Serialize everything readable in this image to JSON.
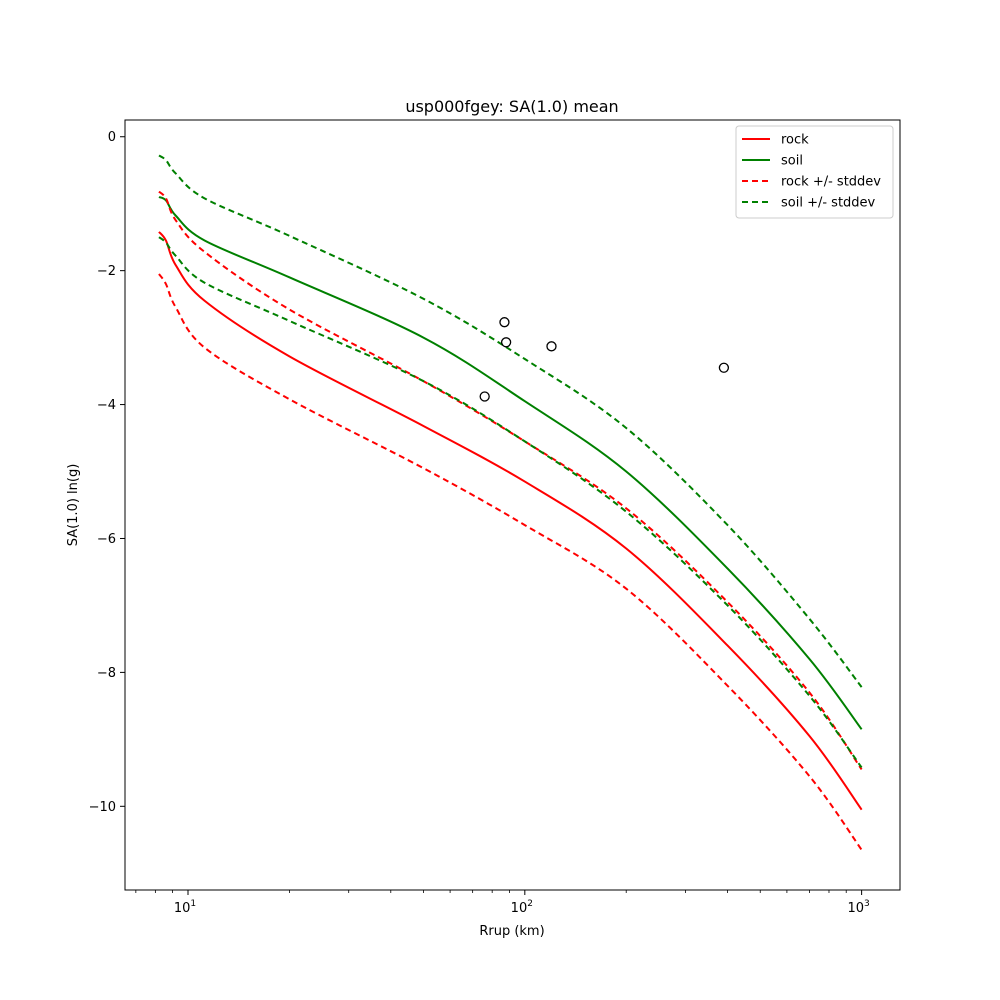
{
  "chart_data": {
    "type": "line",
    "title": "usp000fgey: SA(1.0) mean",
    "xlabel": "Rrup (km)",
    "ylabel": "SA(1.0) ln(g)",
    "xscale": "log",
    "xlim": [
      6.5,
      1300
    ],
    "ylim": [
      -11.25,
      0.25
    ],
    "x_ticks": [
      {
        "value": 10,
        "base": "10",
        "exp": "1"
      },
      {
        "value": 100,
        "base": "10",
        "exp": "2"
      },
      {
        "value": 1000,
        "base": "10",
        "exp": "3"
      }
    ],
    "y_ticks": [
      {
        "value": 0,
        "label": "0"
      },
      {
        "value": -2,
        "label": "−2"
      },
      {
        "value": -4,
        "label": "−4"
      },
      {
        "value": -6,
        "label": "−6"
      },
      {
        "value": -8,
        "label": "−8"
      },
      {
        "value": -10,
        "label": "−10"
      }
    ],
    "grid": false,
    "legend_position": "top-right",
    "series": [
      {
        "name": "rock",
        "color": "#ff0000",
        "dash": "solid",
        "x": [
          8.2,
          8.6,
          9.2,
          11.2,
          20,
          50,
          100,
          200,
          400,
          700,
          1000
        ],
        "y": [
          -1.42,
          -1.55,
          -1.92,
          -2.45,
          -3.28,
          -4.32,
          -5.15,
          -6.15,
          -7.6,
          -8.95,
          -10.05
        ]
      },
      {
        "name": "soil",
        "color": "#008000",
        "dash": "solid",
        "x": [
          8.2,
          8.6,
          9.2,
          11.2,
          20,
          50,
          100,
          200,
          400,
          700,
          1000
        ],
        "y": [
          -0.9,
          -0.95,
          -1.18,
          -1.55,
          -2.1,
          -3.0,
          -3.95,
          -5.0,
          -6.45,
          -7.8,
          -8.85
        ]
      },
      {
        "name": "rock +/- stddev",
        "color": "#ff0000",
        "dash": "dashed",
        "x": [
          8.2,
          8.6,
          9.2,
          11.2,
          20,
          50,
          100,
          200,
          400,
          700,
          1000
        ],
        "y": [
          -0.82,
          -0.92,
          -1.25,
          -1.72,
          -2.58,
          -3.65,
          -4.55,
          -5.55,
          -6.95,
          -8.3,
          -9.45
        ]
      },
      {
        "name": "",
        "color": "#ff0000",
        "dash": "dashed",
        "x": [
          8.2,
          8.6,
          9.2,
          11.2,
          20,
          50,
          100,
          200,
          400,
          700,
          1000
        ],
        "y": [
          -2.05,
          -2.2,
          -2.55,
          -3.15,
          -3.92,
          -4.95,
          -5.8,
          -6.75,
          -8.2,
          -9.55,
          -10.65
        ]
      },
      {
        "name": "soil +/- stddev",
        "color": "#008000",
        "dash": "dashed",
        "x": [
          8.2,
          8.6,
          9.2,
          11.2,
          20,
          50,
          100,
          200,
          400,
          700,
          1000
        ],
        "y": [
          -0.28,
          -0.35,
          -0.55,
          -0.92,
          -1.48,
          -2.42,
          -3.32,
          -4.35,
          -5.8,
          -7.2,
          -8.22
        ]
      },
      {
        "name": "",
        "color": "#008000",
        "dash": "dashed",
        "x": [
          8.2,
          8.6,
          9.2,
          11.2,
          20,
          50,
          100,
          200,
          400,
          700,
          1000
        ],
        "y": [
          -1.5,
          -1.58,
          -1.78,
          -2.18,
          -2.75,
          -3.65,
          -4.55,
          -5.6,
          -7.0,
          -8.35,
          -9.42
        ]
      }
    ],
    "observations": {
      "marker": "open-circle",
      "color": "#000000",
      "points": [
        {
          "x": 76,
          "y": -3.88
        },
        {
          "x": 87,
          "y": -2.77
        },
        {
          "x": 88,
          "y": -3.07
        },
        {
          "x": 120,
          "y": -3.13
        },
        {
          "x": 390,
          "y": -3.45
        }
      ]
    }
  }
}
